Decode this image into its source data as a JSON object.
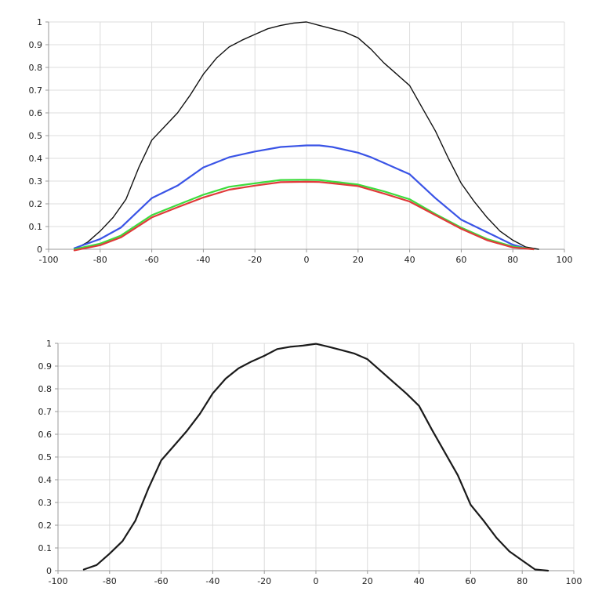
{
  "chart_data": [
    {
      "type": "line",
      "title": "",
      "xlabel": "",
      "ylabel": "",
      "xlim": [
        -100,
        100
      ],
      "ylim": [
        0,
        1
      ],
      "grid": true,
      "x_ticks": [
        -100,
        -80,
        -60,
        -40,
        -20,
        0,
        20,
        40,
        60,
        80,
        100
      ],
      "y_ticks": [
        0,
        0.1,
        0.2,
        0.3,
        0.4,
        0.5,
        0.6,
        0.7,
        0.8,
        0.9,
        1
      ],
      "x_tick_labels": [
        "-100",
        "-80",
        "-60",
        "-40",
        "-20",
        "0",
        "20",
        "40",
        "60",
        "80",
        "100"
      ],
      "y_tick_labels": [
        "0",
        "0.1",
        "0.2",
        "0.3",
        "0.4",
        "0.5",
        "0.6",
        "0.7",
        "0.8",
        "0.9",
        "1"
      ],
      "series": [
        {
          "name": "black",
          "color": "#111111",
          "x": [
            -90,
            -85,
            -80,
            -75,
            -70,
            -65,
            -60,
            -55,
            -50,
            -45,
            -40,
            -35,
            -30,
            -25,
            -20,
            -15,
            -10,
            -5,
            0,
            5,
            10,
            15,
            20,
            25,
            30,
            35,
            40,
            45,
            50,
            55,
            60,
            65,
            70,
            75,
            80,
            85,
            90
          ],
          "y": [
            0.0,
            0.03,
            0.08,
            0.14,
            0.22,
            0.36,
            0.48,
            0.54,
            0.6,
            0.68,
            0.77,
            0.84,
            0.89,
            0.92,
            0.945,
            0.97,
            0.985,
            0.995,
            1.0,
            0.985,
            0.97,
            0.955,
            0.93,
            0.88,
            0.82,
            0.77,
            0.72,
            0.62,
            0.52,
            0.4,
            0.29,
            0.21,
            0.14,
            0.08,
            0.04,
            0.01,
            0.0
          ]
        },
        {
          "name": "blue",
          "color": "#3a54e6",
          "x": [
            -90,
            -80,
            -72,
            -60,
            -50,
            -40,
            -30,
            -20,
            -10,
            0,
            5,
            10,
            20,
            25,
            30,
            40,
            50,
            60,
            70,
            80,
            85
          ],
          "y": [
            0.005,
            0.045,
            0.095,
            0.225,
            0.28,
            0.36,
            0.405,
            0.43,
            0.45,
            0.457,
            0.457,
            0.45,
            0.425,
            0.405,
            0.38,
            0.33,
            0.225,
            0.13,
            0.075,
            0.02,
            0.005
          ]
        },
        {
          "name": "green",
          "color": "#3ddc3d",
          "x": [
            -90,
            -80,
            -72,
            -60,
            -50,
            -40,
            -30,
            -20,
            -10,
            0,
            5,
            10,
            20,
            30,
            40,
            50,
            60,
            70,
            80,
            88
          ],
          "y": [
            0.0,
            0.025,
            0.06,
            0.15,
            0.195,
            0.24,
            0.275,
            0.29,
            0.305,
            0.306,
            0.305,
            0.298,
            0.285,
            0.255,
            0.22,
            0.155,
            0.095,
            0.045,
            0.012,
            0.0
          ]
        },
        {
          "name": "red",
          "color": "#e03a3a",
          "x": [
            -90,
            -80,
            -72,
            -60,
            -50,
            -40,
            -30,
            -20,
            -10,
            0,
            5,
            10,
            20,
            30,
            40,
            50,
            60,
            70,
            80,
            88
          ],
          "y": [
            -0.005,
            0.018,
            0.052,
            0.14,
            0.185,
            0.228,
            0.262,
            0.28,
            0.295,
            0.297,
            0.296,
            0.29,
            0.278,
            0.245,
            0.21,
            0.15,
            0.09,
            0.04,
            0.008,
            0.0
          ]
        }
      ]
    },
    {
      "type": "line",
      "title": "",
      "xlabel": "",
      "ylabel": "",
      "xlim": [
        -100,
        100
      ],
      "ylim": [
        0,
        1
      ],
      "grid": true,
      "x_ticks": [
        -100,
        -80,
        -60,
        -40,
        -20,
        0,
        20,
        40,
        60,
        80,
        100
      ],
      "y_ticks": [
        0,
        0.1,
        0.2,
        0.3,
        0.4,
        0.5,
        0.6,
        0.7,
        0.8,
        0.9,
        1
      ],
      "x_tick_labels": [
        "-100",
        "-80",
        "-60",
        "-40",
        "-20",
        "0",
        "20",
        "40",
        "60",
        "80",
        "100"
      ],
      "y_tick_labels": [
        "0",
        "0.1",
        "0.2",
        "0.3",
        "0.4",
        "0.5",
        "0.6",
        "0.7",
        "0.8",
        "0.9",
        "1"
      ],
      "series": [
        {
          "name": "black",
          "color": "#1a1a1a",
          "x": [
            -90,
            -85,
            -80,
            -75,
            -70,
            -65,
            -60,
            -55,
            -50,
            -45,
            -40,
            -35,
            -30,
            -25,
            -20,
            -15,
            -10,
            -5,
            0,
            5,
            10,
            15,
            20,
            25,
            30,
            35,
            40,
            45,
            50,
            55,
            60,
            65,
            70,
            75,
            80,
            85,
            90
          ],
          "y": [
            0.005,
            0.025,
            0.075,
            0.13,
            0.22,
            0.36,
            0.485,
            0.55,
            0.615,
            0.69,
            0.78,
            0.845,
            0.89,
            0.92,
            0.945,
            0.975,
            0.985,
            0.99,
            0.998,
            0.985,
            0.97,
            0.955,
            0.93,
            0.88,
            0.83,
            0.78,
            0.725,
            0.62,
            0.52,
            0.42,
            0.29,
            0.22,
            0.145,
            0.085,
            0.045,
            0.005,
            0.0
          ]
        }
      ]
    }
  ]
}
